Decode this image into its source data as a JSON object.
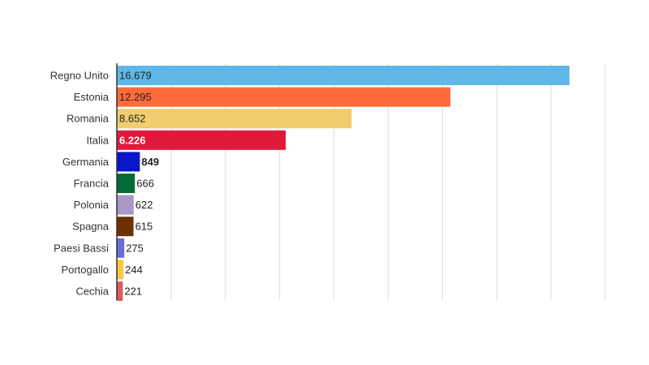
{
  "chart_data": {
    "type": "bar",
    "orientation": "horizontal",
    "title": "",
    "xlabel": "",
    "ylabel": "",
    "xlim": [
      0,
      18000
    ],
    "grid": true,
    "categories": [
      "Regno Unito",
      "Estonia",
      "Romania",
      "Italia",
      "Germania",
      "Francia",
      "Polonia",
      "Spagna",
      "Paesi Bassi",
      "Portogallo",
      "Cechia"
    ],
    "values": [
      16679,
      12295,
      8652,
      6226,
      849,
      666,
      622,
      615,
      275,
      244,
      221
    ],
    "value_labels": [
      "16.679",
      "12.295",
      "8.652",
      "6.226",
      "849",
      "666",
      "622",
      "615",
      "275",
      "244",
      "221"
    ],
    "colors": [
      "#5fb8e8",
      "#ff6b3a",
      "#f0cd6e",
      "#e0193a",
      "#0a16c8",
      "#046a37",
      "#ab96c8",
      "#6b3200",
      "#6a6cd4",
      "#fcc93a",
      "#e05a5f"
    ],
    "label_colors": [
      "#222222",
      "#222222",
      "#222222",
      "#ffffff",
      "#ffffff",
      "#222222",
      "#222222",
      "#222222",
      "#222222",
      "#222222",
      "#222222"
    ],
    "label_bold": [
      false,
      false,
      false,
      true,
      true,
      false,
      false,
      false,
      false,
      false,
      false
    ]
  }
}
